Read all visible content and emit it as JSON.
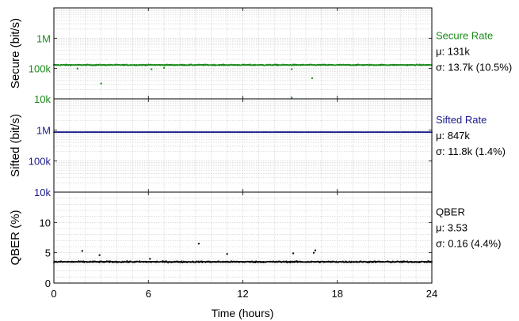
{
  "chart_data": [
    {
      "type": "scatter",
      "panel": "secure",
      "ylabel": "Secure (bit/s)",
      "yscale": "log",
      "ylim": [
        10000,
        10000000
      ],
      "yticks": [
        {
          "v": 10000,
          "label": "10k"
        },
        {
          "v": 100000,
          "label": "100k"
        },
        {
          "v": 1000000,
          "label": "1M"
        }
      ],
      "color": "#1a8a1a",
      "baseline": 131000,
      "noise": 0.05,
      "outliers": [
        [
          1.5,
          100000
        ],
        [
          3.0,
          32000
        ],
        [
          6.2,
          95000
        ],
        [
          7.0,
          105000
        ],
        [
          15.1,
          95000
        ],
        [
          16.4,
          48000
        ],
        [
          15.1,
          11000
        ]
      ],
      "legend": {
        "name": "Secure Rate",
        "mean": "μ: 131k",
        "sigma": "σ: 13.7k (10.5%)"
      }
    },
    {
      "type": "scatter",
      "panel": "sifted",
      "ylabel": "Sifted (bit/s)",
      "yscale": "log",
      "ylim": [
        10000,
        10000000
      ],
      "yticks": [
        {
          "v": 10000,
          "label": "10k"
        },
        {
          "v": 100000,
          "label": "100k"
        },
        {
          "v": 1000000,
          "label": "1M"
        }
      ],
      "color": "#1a1a8a",
      "baseline": 847000,
      "noise": 0.006,
      "outliers": [],
      "legend": {
        "name": "Sifted Rate",
        "mean": "μ: 847k",
        "sigma": "σ: 11.8k (1.4%)"
      }
    },
    {
      "type": "scatter",
      "panel": "qber",
      "ylabel": "QBER (%)",
      "yscale": "linear",
      "ylim": [
        0,
        15
      ],
      "yticks": [
        {
          "v": 0,
          "label": "0"
        },
        {
          "v": 5,
          "label": "5"
        },
        {
          "v": 10,
          "label": "10"
        }
      ],
      "color": "#000000",
      "baseline": 3.5,
      "noise": 0.08,
      "outliers": [
        [
          1.8,
          5.3
        ],
        [
          2.9,
          4.6
        ],
        [
          6.1,
          4.0
        ],
        [
          9.2,
          6.5
        ],
        [
          11.0,
          4.8
        ],
        [
          15.2,
          4.9
        ],
        [
          16.5,
          5.0
        ],
        [
          16.6,
          5.4
        ]
      ],
      "legend": {
        "name": "QBER",
        "mean": "μ: 3.53",
        "sigma": "σ: 0.16 (4.4%)"
      }
    }
  ],
  "x_axis": {
    "label": "Time (hours)",
    "xlim": [
      0,
      24
    ],
    "ticks": [
      {
        "v": 0,
        "label": "0"
      },
      {
        "v": 6,
        "label": "6"
      },
      {
        "v": 12,
        "label": "12"
      },
      {
        "v": 18,
        "label": "18"
      },
      {
        "v": 24,
        "label": "24"
      }
    ]
  }
}
